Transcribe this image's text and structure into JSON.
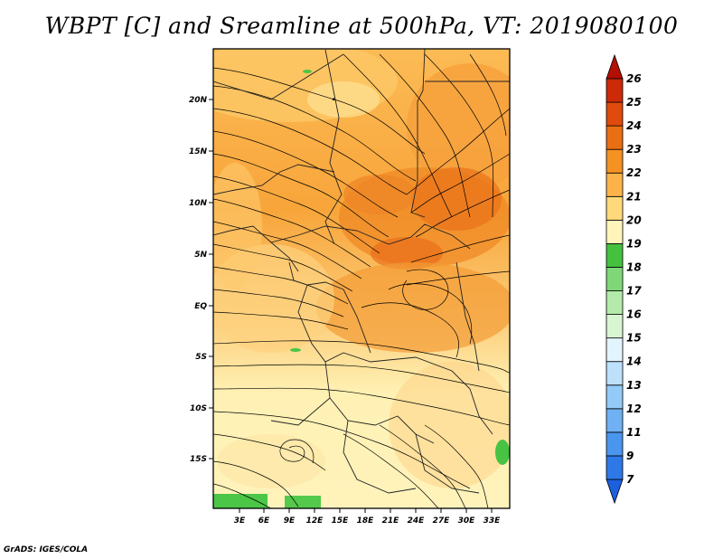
{
  "title": "WBPT [C] and Sreamline at 500hPa, VT: 2019080100",
  "credit": "GrADS: IGES/COLA",
  "map": {
    "variable": "wet-bulb potential temperature",
    "units": "C",
    "level": "500hPa",
    "valid_time": "2019080100",
    "lon_ticks": [
      "3E",
      "6E",
      "9E",
      "12E",
      "15E",
      "18E",
      "21E",
      "24E",
      "27E",
      "30E",
      "33E"
    ],
    "lat_ticks": [
      "20N",
      "15N",
      "10N",
      "5N",
      "EQ",
      "5S",
      "10S",
      "15S"
    ],
    "overlay": "streamlines"
  },
  "colorbar": {
    "labels": [
      "7",
      "9",
      "11",
      "12",
      "13",
      "14",
      "15",
      "16",
      "17",
      "18",
      "19",
      "20",
      "21",
      "22",
      "23",
      "24",
      "25",
      "26"
    ],
    "colors": [
      "#1c5fdf",
      "#2e78e8",
      "#4a95ee",
      "#6fb1f3",
      "#94caf7",
      "#bde0fb",
      "#e2f4fd",
      "#d8f5d2",
      "#b3eaa9",
      "#7fd878",
      "#45c140",
      "#fff5bb",
      "#ffd97a",
      "#fcb44a",
      "#f49223",
      "#ea6f13",
      "#e04a0c",
      "#cc2a08",
      "#b30f05"
    ]
  }
}
